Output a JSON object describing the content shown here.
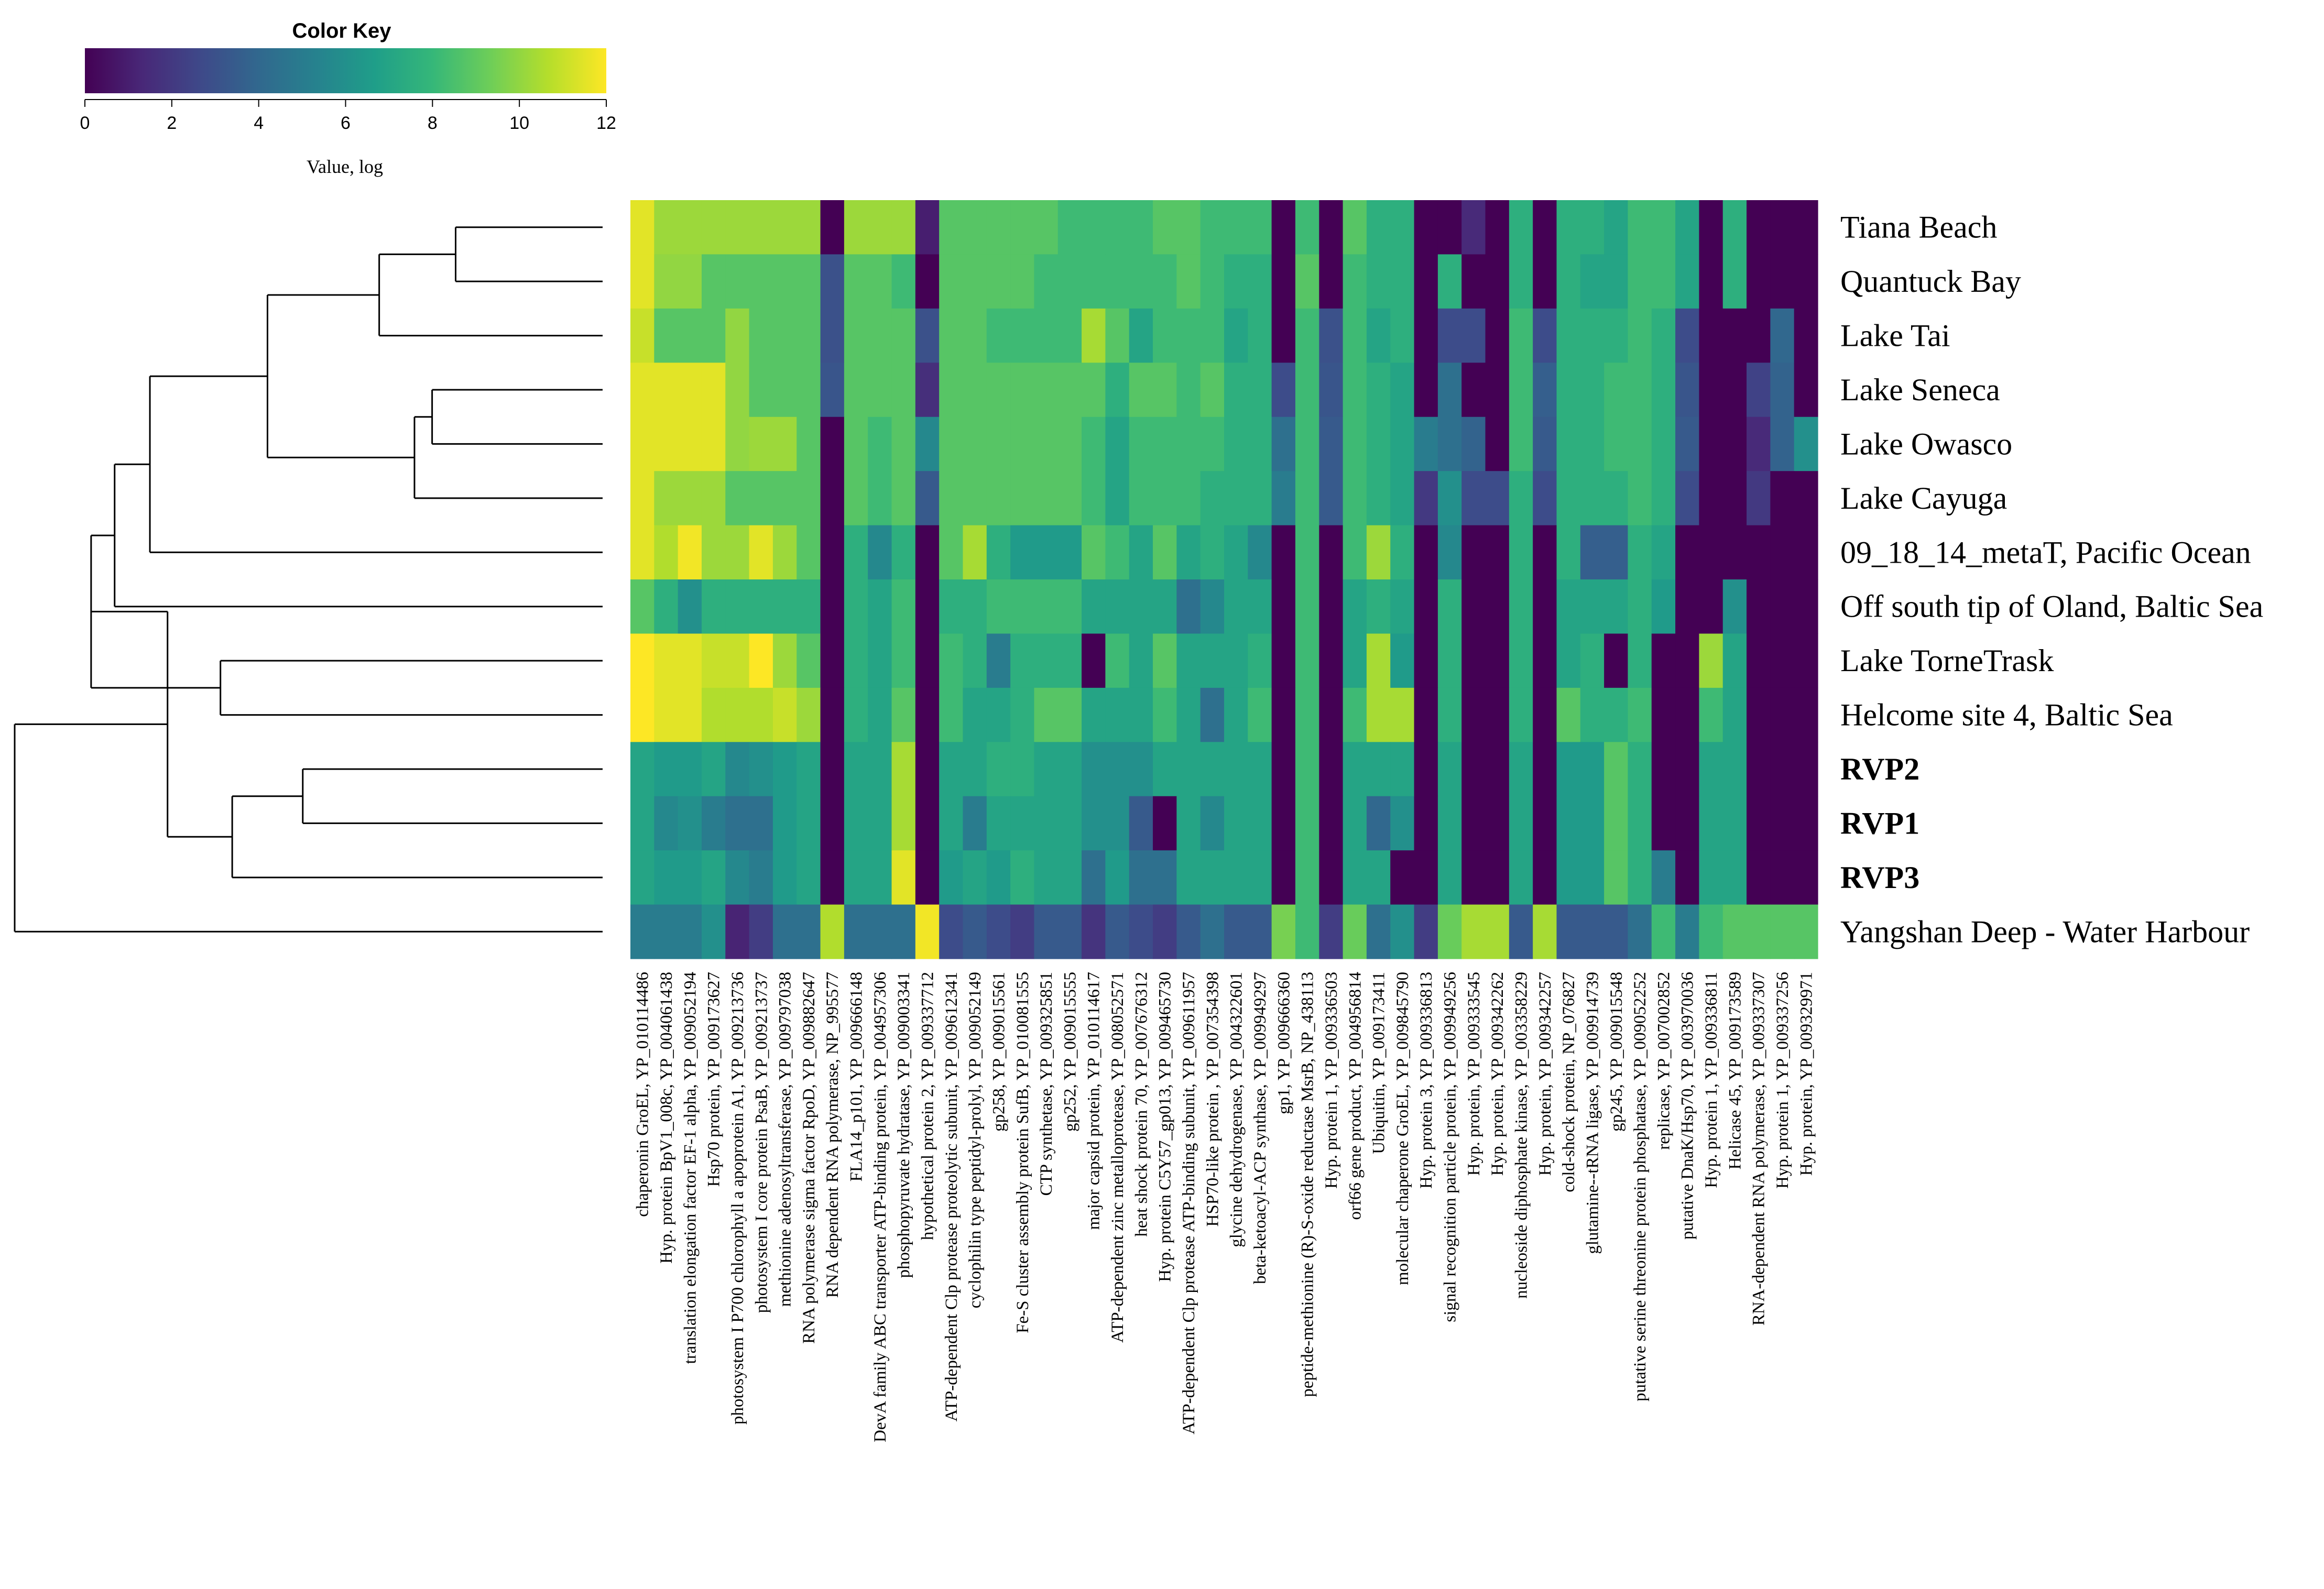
{
  "chart_data": {
    "type": "heatmap",
    "title": "",
    "color_key": {
      "title": "Color Key",
      "label": "Value, log",
      "range": [
        0,
        12
      ],
      "ticks": [
        "0",
        "2",
        "4",
        "6",
        "8",
        "10",
        "12"
      ],
      "palette": [
        "#440154",
        "#482878",
        "#3e4989",
        "#31688e",
        "#26828e",
        "#1f9e89",
        "#35b779",
        "#6ece58",
        "#b5de2b",
        "#fde725"
      ]
    },
    "rows": [
      {
        "label": "Tiana Beach",
        "bold": false
      },
      {
        "label": "Quantuck Bay",
        "bold": false
      },
      {
        "label": "Lake Tai",
        "bold": false
      },
      {
        "label": "Lake Seneca",
        "bold": false
      },
      {
        "label": "Lake Owasco",
        "bold": false
      },
      {
        "label": "Lake Cayuga",
        "bold": false
      },
      {
        "label": "09_18_14_metaT, Pacific Ocean",
        "bold": false
      },
      {
        "label": "Off south tip of Oland, Baltic Sea",
        "bold": false
      },
      {
        "label": "Lake TorneTrask",
        "bold": false
      },
      {
        "label": "Helcome site 4, Baltic Sea",
        "bold": false
      },
      {
        "label": "RVP2",
        "bold": true
      },
      {
        "label": "RVP1",
        "bold": true
      },
      {
        "label": "RVP3",
        "bold": true
      },
      {
        "label": "Yangshan Deep - Water Harbour",
        "bold": false
      }
    ],
    "columns": [
      "chaperonin GroEL, YP_010114486",
      "Hyp. protein BpV1_008c, YP_004061438",
      "translation elongation factor EF-1 alpha, YP_009052194",
      "Hsp70 protein, YP_009173627",
      "photosystem I P700 chlorophyll a apoprotein A1, YP_009213736",
      "photosystem I core protein PsaB, YP_009213737",
      "methionine adenosyltransferase, YP_009797038",
      "RNA polymerase sigma factor RpoD, YP_009882647",
      "RNA dependent RNA polymerase, NP_995577",
      "FLA14_p101, YP_009666148",
      "DevA family ABC transporter ATP-binding protein, YP_004957306",
      "phosphopyruvate hydratase, YP_009003341",
      "hypothetical protein 2, YP_009337712",
      "ATP-dependent Clp protease proteolytic subunit, YP_009612341",
      "cyclophilin type peptidyl-prolyl, YP_009052149",
      "gp258, YP_009015561",
      "Fe-S cluster assembly protein SufB, YP_010081555",
      "CTP synthetase, YP_009325851",
      "gp252, YP_009015555",
      "major capsid protein, YP_010114617",
      "ATP-dependent zinc metalloprotease, YP_008052571",
      "heat shock protein 70, YP_007676312",
      "Hyp. protein C5Y57_gp013, YP_009465730",
      "ATP-dependent Clp protease ATP-binding subunit, YP_009611957",
      "HSP70-like protein , YP_007354398",
      "glycine dehydrogenase, YP_004322601",
      "beta-ketoacyl-ACP synthase, YP_009949297",
      "gp1, YP_009666360",
      "peptide-methionine (R)-S-oxide reductase MsrB, NP_438113",
      "Hyp. protein 1, YP_009336503",
      "orf66 gene product, YP_004956814",
      "Ubiquitin, YP_009173411",
      "molecular chaperone GroEL, YP_009845790",
      "Hyp. protein 3, YP_009336813",
      "signal recognition particle protein, YP_009949256",
      "Hyp. protein, YP_009333545",
      "Hyp. protein, YP_009342262",
      "nucleoside diphosphate kinase, YP_003358229",
      "Hyp. protein, YP_009342257",
      "cold-shock protein, NP_076827",
      "glutamine--tRNA ligase, YP_009914739",
      "gp245, YP_009015548",
      "putative serine threonine protein phosphatase, YP_009052252",
      "replicase, YP_007002852",
      "putative DnaK/Hsp70, YP_003970036",
      "Hyp. protein 1, YP_009336811",
      "Helicase 45, YP_009173589",
      "RNA-dependent RNA polymerase, YP_009337307",
      "Hyp. protein 1, YP_009337256",
      "Hyp. protein, YP_009329971"
    ],
    "values": [
      [
        11.5,
        10.2,
        10.2,
        10.2,
        10.2,
        10.2,
        10.2,
        10.2,
        0,
        10.2,
        10.2,
        10.2,
        1,
        8.8,
        8.8,
        8.8,
        8.8,
        8.8,
        8.2,
        8.2,
        8.2,
        8.2,
        8.8,
        8.8,
        8.2,
        8.2,
        8.2,
        0,
        8.2,
        0,
        8.8,
        7.6,
        7.6,
        0,
        0,
        1.4,
        0,
        7.6,
        0,
        7.6,
        7.6,
        7,
        8.2,
        8.2,
        7,
        0,
        7.6,
        0,
        0,
        0
      ],
      [
        11.5,
        10,
        10,
        8.8,
        8.8,
        8.8,
        8.8,
        8.8,
        3,
        8.8,
        8.8,
        8.2,
        0,
        8.8,
        8.8,
        8.8,
        8.8,
        8.2,
        8.2,
        8.2,
        8.2,
        8.2,
        8.2,
        8.8,
        8.2,
        7.6,
        7.6,
        0,
        8.8,
        0,
        8.2,
        7.6,
        7.6,
        0,
        7.6,
        0,
        0,
        7.6,
        0,
        7.6,
        7,
        7,
        8.2,
        8.2,
        7,
        0,
        7.6,
        0,
        0,
        0
      ],
      [
        11,
        8.8,
        8.8,
        8.8,
        10,
        8.8,
        8.8,
        8.8,
        3,
        8.8,
        8.8,
        8.8,
        3,
        8.8,
        8.8,
        8.2,
        8.2,
        8.2,
        8.2,
        10.4,
        8.8,
        7,
        8.2,
        8.2,
        8.2,
        7,
        7.6,
        0,
        8.2,
        3,
        8.2,
        7,
        7.6,
        0,
        2.8,
        2.8,
        0,
        8.2,
        2.8,
        7.6,
        7.6,
        7.6,
        8.2,
        7.6,
        2.8,
        0,
        0,
        0,
        4,
        0
      ],
      [
        11.5,
        11.5,
        11.5,
        11.5,
        10,
        8.8,
        8.8,
        8.8,
        3.2,
        8.8,
        8.8,
        8.8,
        1.6,
        8.8,
        8.8,
        8.8,
        8.8,
        8.8,
        8.8,
        8.8,
        7.6,
        8.8,
        8.8,
        8.2,
        8.8,
        7.6,
        7.6,
        2.8,
        8.2,
        3.2,
        8.2,
        7.6,
        7,
        0,
        4.4,
        0,
        0,
        8.2,
        3.6,
        7.6,
        7.6,
        8.2,
        8.2,
        7.6,
        3.2,
        0,
        0,
        2.4,
        3.8,
        0
      ],
      [
        11.5,
        11.5,
        11.5,
        11.5,
        10,
        10.2,
        10.2,
        8.8,
        0,
        8.8,
        8.2,
        8.8,
        5.6,
        8.8,
        8.8,
        8.8,
        8.8,
        8.8,
        8.8,
        8.2,
        7,
        8.2,
        8.2,
        8.2,
        8.2,
        7.6,
        7.6,
        4.4,
        8.2,
        3.4,
        8.2,
        7.6,
        7,
        5,
        4.4,
        3.8,
        0,
        8.2,
        3.4,
        7.6,
        7.6,
        8.2,
        8.2,
        7.6,
        3.4,
        0,
        0,
        1.4,
        3.8,
        6
      ],
      [
        11.5,
        10.2,
        10.2,
        10.2,
        8.8,
        8.8,
        8.8,
        8.8,
        0,
        8.8,
        8.2,
        8.8,
        3.4,
        8.8,
        8.8,
        8.8,
        8.8,
        8.8,
        8.8,
        8.2,
        7,
        8.2,
        8.2,
        8.2,
        7.6,
        7.6,
        7.6,
        5,
        8.2,
        3.4,
        8.2,
        7.6,
        7,
        2,
        6,
        2.8,
        2.8,
        7.6,
        2.8,
        7.6,
        7.6,
        7.6,
        8.2,
        7.6,
        2.8,
        0,
        0,
        2,
        0,
        0
      ],
      [
        11.5,
        10.6,
        11.8,
        10.2,
        10.2,
        11.5,
        10.2,
        8.8,
        0,
        7.6,
        5.6,
        7.6,
        0,
        8.8,
        10.4,
        7.6,
        6.5,
        6.5,
        6.5,
        8.8,
        8.2,
        7,
        8.8,
        7,
        7.6,
        7,
        5.6,
        0,
        8.2,
        0,
        8.2,
        10.2,
        7.6,
        0,
        5.6,
        0,
        0,
        7.6,
        0,
        7.6,
        3.6,
        3.6,
        7.6,
        7,
        0,
        0,
        0,
        0,
        0,
        0
      ],
      [
        8.8,
        7.6,
        6,
        7.6,
        7.6,
        7.6,
        7.6,
        7.6,
        0,
        7.6,
        7,
        8.2,
        0,
        7.6,
        7.6,
        8.2,
        8.2,
        8.2,
        8.2,
        7,
        7,
        7,
        7,
        4.4,
        5.6,
        7,
        7,
        0,
        8.2,
        0,
        7,
        7.6,
        7,
        0,
        7.6,
        0,
        0,
        7.6,
        0,
        7,
        7,
        7,
        7.6,
        6.5,
        0,
        0,
        6,
        0,
        0,
        0
      ],
      [
        12,
        11.5,
        11.5,
        11,
        11,
        12,
        10.2,
        8.8,
        0,
        7.6,
        7,
        8.2,
        0,
        8.2,
        7.6,
        5,
        7.6,
        7.6,
        7.6,
        0,
        8.2,
        7,
        8.8,
        7,
        7,
        7,
        7.6,
        0,
        8.2,
        0,
        7,
        10.4,
        6.5,
        0,
        7.6,
        0,
        0,
        7.6,
        0,
        7,
        7.6,
        0,
        7.6,
        0,
        0,
        10.2,
        7,
        0,
        0,
        0
      ],
      [
        12,
        11.5,
        11.5,
        10.6,
        10.6,
        10.6,
        11,
        10.2,
        0,
        7.6,
        7,
        8.8,
        0,
        8.2,
        7,
        7,
        7.6,
        8.8,
        8.8,
        7,
        7,
        7,
        8.2,
        7,
        4.4,
        7,
        8.2,
        0,
        8.2,
        0,
        8.2,
        10.4,
        10.4,
        0,
        7.6,
        0,
        0,
        7.6,
        0,
        8.8,
        7.6,
        7.6,
        8.2,
        0,
        0,
        8.2,
        7,
        0,
        0,
        0
      ],
      [
        7,
        6.5,
        6.5,
        7,
        5.6,
        6,
        6.5,
        7,
        0,
        7,
        7,
        10.4,
        0,
        7,
        7,
        7.6,
        7.6,
        7,
        7,
        6,
        6,
        6,
        7,
        7,
        7,
        7,
        7,
        0,
        8.2,
        0,
        7,
        7,
        7,
        0,
        7,
        0,
        0,
        7,
        0,
        6.5,
        6.5,
        8.8,
        7.6,
        0,
        0,
        7,
        7,
        0,
        0,
        0
      ],
      [
        7,
        5.6,
        6,
        5,
        4.4,
        4.4,
        6.5,
        7,
        0,
        7,
        7,
        10.4,
        0,
        7,
        5,
        7,
        7,
        7,
        7,
        6,
        6,
        3.4,
        0,
        7,
        5.6,
        7,
        7,
        0,
        8.2,
        0,
        7,
        4,
        6,
        0,
        7,
        0,
        0,
        7,
        0,
        6.5,
        6.5,
        8.8,
        7.6,
        0,
        0,
        7,
        7,
        0,
        0,
        0
      ],
      [
        7,
        6.5,
        6.5,
        7,
        5.6,
        5,
        6.5,
        7,
        0,
        7,
        7,
        11.5,
        0,
        6.5,
        7,
        6.5,
        7.6,
        7,
        7,
        4.4,
        6.5,
        4.4,
        4.4,
        7,
        7,
        7,
        7,
        0,
        8.2,
        0,
        7,
        7,
        0,
        0,
        7,
        0,
        0,
        7,
        0,
        6.5,
        6.5,
        8.8,
        7.6,
        5,
        0,
        7,
        7,
        0,
        0,
        0
      ],
      [
        5,
        5,
        5,
        6,
        1.2,
        2.2,
        4.4,
        4.4,
        10.6,
        4.4,
        4.4,
        4.4,
        11.8,
        2.8,
        3.4,
        2.8,
        2.2,
        3.4,
        3.4,
        1.8,
        3.4,
        2.8,
        2.2,
        3.4,
        4.4,
        3.4,
        3.4,
        9.5,
        8.2,
        2.2,
        9.2,
        4.4,
        6,
        2.2,
        9.2,
        10.4,
        10.4,
        3.4,
        10.4,
        3.4,
        3.4,
        3.4,
        4.4,
        8.2,
        5,
        8.2,
        8.8,
        8.8,
        8.8,
        8.8
      ]
    ],
    "dendrogram": {
      "leaf_order": [
        "Tiana Beach",
        "Quantuck Bay",
        "Lake Tai",
        "Lake Seneca",
        "Lake Owasco",
        "Lake Cayuga",
        "09_18_14_metaT, Pacific Ocean",
        "Off south tip of Oland, Baltic Sea",
        "Lake TorneTrask",
        "Helcome site 4, Baltic Sea",
        "RVP2",
        "RVP1",
        "RVP3",
        "Yangshan Deep - Water Harbour"
      ],
      "merges": [
        {
          "a": 0,
          "b": 1,
          "height": 0.25
        },
        {
          "a": 4,
          "b": 3,
          "height": 0.29
        },
        {
          "a": 15,
          "b": 5,
          "height": 0.32
        },
        {
          "a": 14,
          "b": 2,
          "height": 0.38
        },
        {
          "a": 17,
          "b": 16,
          "height": 0.57
        },
        {
          "a": 18,
          "b": 6,
          "height": 0.77
        },
        {
          "a": 19,
          "b": 7,
          "height": 0.83
        },
        {
          "a": 8,
          "b": 9,
          "height": 0.65
        },
        {
          "a": 20,
          "b": 21,
          "height": 0.87
        },
        {
          "a": 10,
          "b": 11,
          "height": 0.51
        },
        {
          "a": 23,
          "b": 12,
          "height": 0.63
        },
        {
          "a": 22,
          "b": 24,
          "height": 0.74
        },
        {
          "a": 25,
          "b": 13,
          "height": 1.0
        }
      ]
    }
  }
}
